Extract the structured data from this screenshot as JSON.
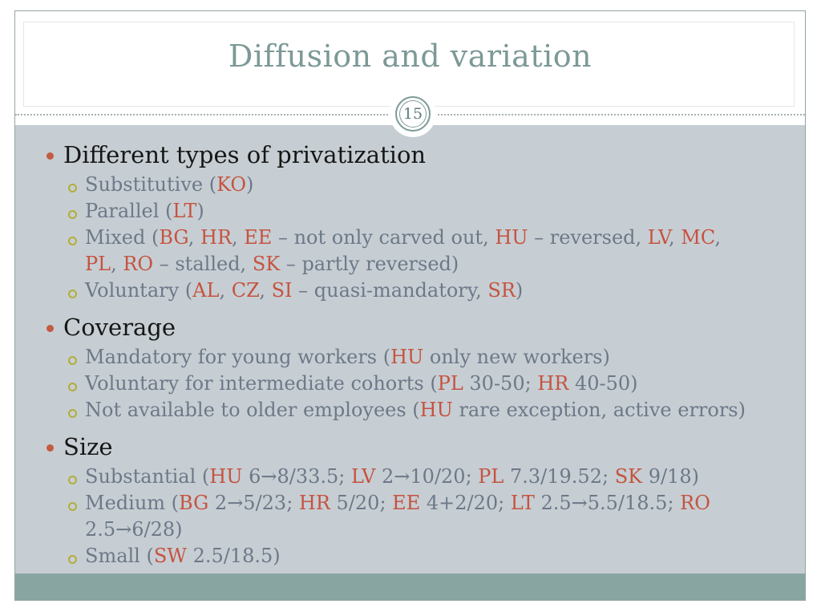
{
  "colors": {
    "page_bg": "#ffffff",
    "slide_bg": "#ffffff",
    "slide_border": "#93a5a3",
    "divider": "#a5b1b3",
    "title_text": "#7c9997",
    "heading_text": "#161616",
    "body_text": "#6d7888",
    "accent_code": "#c65340",
    "level1_bullet": "#c25b41",
    "level2_bullet": "#b3ad39",
    "content_bg": "#c6ced3",
    "footer_band": "#89a5a2",
    "badge_bg": "#ffffff",
    "badge_ring": "#7d9a98",
    "badge_text": "#5e7d7b"
  },
  "slide": {
    "title": "Diffusion and variation",
    "page_number": "15",
    "content": {
      "items": [
        {
          "level": 1,
          "lines": [
            [
              {
                "t": "Different types of privatization"
              }
            ]
          ]
        },
        {
          "level": 2,
          "lines": [
            [
              {
                "t": "Substitutive ("
              },
              {
                "t": "KO",
                "hl": true
              },
              {
                "t": ")"
              }
            ]
          ]
        },
        {
          "level": 2,
          "lines": [
            [
              {
                "t": "Parallel ("
              },
              {
                "t": "LT",
                "hl": true
              },
              {
                "t": ")"
              }
            ]
          ]
        },
        {
          "level": 2,
          "lines": [
            [
              {
                "t": "Mixed ("
              },
              {
                "t": "BG",
                "hl": true
              },
              {
                "t": ", "
              },
              {
                "t": "HR",
                "hl": true
              },
              {
                "t": ", "
              },
              {
                "t": "EE",
                "hl": true
              },
              {
                "t": " – not only carved out, "
              },
              {
                "t": "HU",
                "hl": true
              },
              {
                "t": " – reversed, "
              },
              {
                "t": "LV",
                "hl": true
              },
              {
                "t": ", "
              },
              {
                "t": "MC",
                "hl": true
              },
              {
                "t": ","
              }
            ],
            [
              {
                "t": "PL",
                "hl": true
              },
              {
                "t": ", "
              },
              {
                "t": "RO",
                "hl": true
              },
              {
                "t": " – stalled, "
              },
              {
                "t": "SK",
                "hl": true
              },
              {
                "t": " – partly reversed)"
              }
            ]
          ]
        },
        {
          "level": 2,
          "lines": [
            [
              {
                "t": "Voluntary ("
              },
              {
                "t": "AL",
                "hl": true
              },
              {
                "t": ", "
              },
              {
                "t": "CZ",
                "hl": true
              },
              {
                "t": ", "
              },
              {
                "t": "SI",
                "hl": true
              },
              {
                "t": " – quasi-mandatory, "
              },
              {
                "t": "SR",
                "hl": true
              },
              {
                "t": ")"
              }
            ]
          ]
        },
        {
          "level": 1,
          "lines": [
            [
              {
                "t": "Coverage"
              }
            ]
          ]
        },
        {
          "level": 2,
          "lines": [
            [
              {
                "t": "Mandatory for young workers ("
              },
              {
                "t": "HU",
                "hl": true
              },
              {
                "t": " only new workers)"
              }
            ]
          ]
        },
        {
          "level": 2,
          "lines": [
            [
              {
                "t": "Voluntary for intermediate cohorts ("
              },
              {
                "t": "PL",
                "hl": true
              },
              {
                "t": " 30-50; "
              },
              {
                "t": "HR",
                "hl": true
              },
              {
                "t": " 40-50)"
              }
            ]
          ]
        },
        {
          "level": 2,
          "lines": [
            [
              {
                "t": "Not available to older employees ("
              },
              {
                "t": "HU",
                "hl": true
              },
              {
                "t": " rare exception, active errors)"
              }
            ]
          ]
        },
        {
          "level": 1,
          "lines": [
            [
              {
                "t": "Size"
              }
            ]
          ]
        },
        {
          "level": 2,
          "lines": [
            [
              {
                "t": "Substantial ("
              },
              {
                "t": "HU",
                "hl": true
              },
              {
                "t": " 6→8/33.5; "
              },
              {
                "t": "LV",
                "hl": true
              },
              {
                "t": " 2→10/20; "
              },
              {
                "t": "PL",
                "hl": true
              },
              {
                "t": " 7.3/19.52; "
              },
              {
                "t": "SK",
                "hl": true
              },
              {
                "t": " 9/18)"
              }
            ]
          ]
        },
        {
          "level": 2,
          "lines": [
            [
              {
                "t": "Medium ("
              },
              {
                "t": "BG",
                "hl": true
              },
              {
                "t": " 2→5/23; "
              },
              {
                "t": "HR",
                "hl": true
              },
              {
                "t": " 5/20; "
              },
              {
                "t": "EE",
                "hl": true
              },
              {
                "t": " 4+2/20; "
              },
              {
                "t": "LT",
                "hl": true
              },
              {
                "t": " 2.5→5.5/18.5; "
              },
              {
                "t": "RO",
                "hl": true
              }
            ],
            [
              {
                "t": "2.5→6/28)"
              }
            ]
          ]
        },
        {
          "level": 2,
          "lines": [
            [
              {
                "t": "Small ("
              },
              {
                "t": "SW",
                "hl": true
              },
              {
                "t": " 2.5/18.5)"
              }
            ]
          ]
        }
      ]
    }
  }
}
